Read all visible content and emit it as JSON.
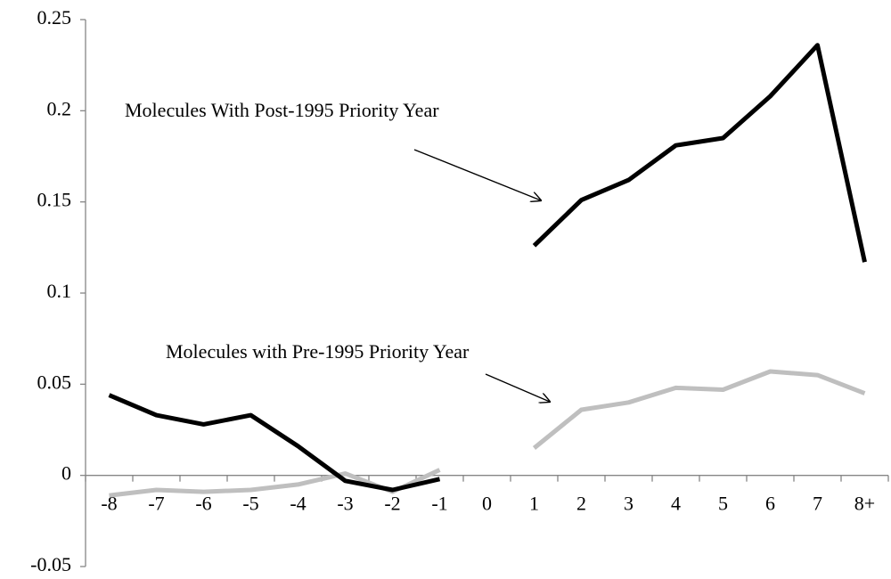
{
  "chart_data": {
    "type": "line",
    "categories": [
      "-8",
      "-7",
      "-6",
      "-5",
      "-4",
      "-3",
      "-2",
      "-1",
      "0",
      "1",
      "2",
      "3",
      "4",
      "5",
      "6",
      "7",
      "8+"
    ],
    "series": [
      {
        "color": "#000000",
        "values": [
          0.044,
          0.033,
          0.028,
          0.033,
          0.016,
          -0.003,
          -0.008,
          -0.002,
          null,
          0.126,
          0.151,
          0.162,
          0.181,
          0.185,
          0.208,
          0.236,
          0.117
        ]
      },
      {
        "color": "#bfbfbf",
        "values": [
          -0.011,
          -0.008,
          -0.009,
          -0.008,
          -0.005,
          0.001,
          -0.009,
          0.003,
          null,
          0.015,
          0.036,
          0.04,
          0.048,
          0.047,
          0.057,
          0.055,
          0.045
        ]
      }
    ],
    "ylim": [
      -0.05,
      0.25
    ],
    "yticks": [
      -0.05,
      0,
      0.05,
      0.1,
      0.15,
      0.2,
      0.25
    ],
    "annotations": [
      {
        "text": "Molecules With Post-1995 Priority Year"
      },
      {
        "text": "Molecules with Pre-1995 Priority Year"
      }
    ]
  }
}
